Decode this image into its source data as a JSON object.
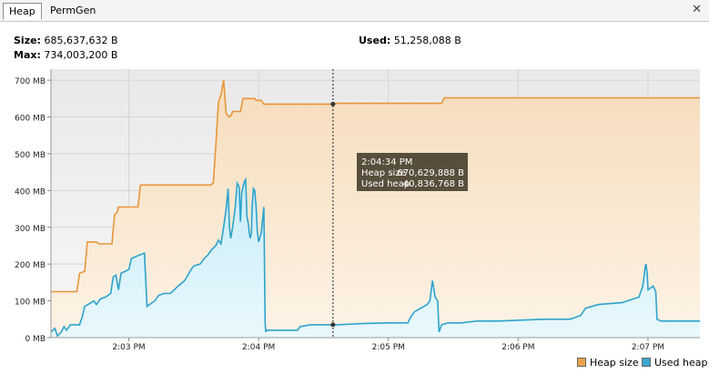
{
  "tabs": [
    {
      "label": "Heap",
      "active": true
    },
    {
      "label": "PermGen",
      "active": false
    }
  ],
  "close_icon": "close-icon",
  "stats": {
    "size_label": "Size:",
    "size_value": "685,637,632 B",
    "max_label": "Max:",
    "max_value": "734,003,200 B",
    "used_label": "Used:",
    "used_value": "51,258,088 B"
  },
  "tooltip": {
    "time": "2:04:34 PM",
    "heap_size_label": "Heap size",
    "heap_size_value": "670,629,888 B",
    "used_heap_label": "Used heap",
    "used_heap_value": "40,836,768 B"
  },
  "legend": [
    {
      "label": "Heap size",
      "color": "#e8a44c"
    },
    {
      "label": "Used heap",
      "color": "#3aa7cf"
    }
  ],
  "colors": {
    "heap_line": "#e8963a",
    "heap_fill_top": "#f6dcbc",
    "heap_fill_bottom": "#fdf3e6",
    "used_line": "#2ea3cc",
    "used_fill_top": "#c8ecf8",
    "used_fill_bottom": "#e9f8fd",
    "grid": "#d5d5d5",
    "tooltip_bg": "#4a4130"
  },
  "chart_data": {
    "type": "area",
    "xlim": [
      2.4,
      7.4
    ],
    "x_ticks": [
      {
        "label": "2:03 PM",
        "value": 3
      },
      {
        "label": "2:04 PM",
        "value": 4
      },
      {
        "label": "2:05 PM",
        "value": 5
      },
      {
        "label": "2:06 PM",
        "value": 6
      },
      {
        "label": "2:07 PM",
        "value": 7
      }
    ],
    "ylim": [
      0,
      730
    ],
    "y_ticks": [
      {
        "label": "0 MB",
        "value": 0
      },
      {
        "label": "100 MB",
        "value": 100
      },
      {
        "label": "200 MB",
        "value": 200
      },
      {
        "label": "300 MB",
        "value": 300
      },
      {
        "label": "400 MB",
        "value": 400
      },
      {
        "label": "500 MB",
        "value": 500
      },
      {
        "label": "600 MB",
        "value": 600
      },
      {
        "label": "700 MB",
        "value": 700
      }
    ],
    "cursor_x": 4.573,
    "series": [
      {
        "name": "Heap size",
        "points": [
          [
            2.4,
            125
          ],
          [
            2.6,
            125
          ],
          [
            2.62,
            175
          ],
          [
            2.66,
            180
          ],
          [
            2.68,
            260
          ],
          [
            2.75,
            260
          ],
          [
            2.77,
            255
          ],
          [
            2.87,
            255
          ],
          [
            2.89,
            335
          ],
          [
            2.91,
            340
          ],
          [
            2.92,
            355
          ],
          [
            3.07,
            355
          ],
          [
            3.09,
            415
          ],
          [
            3.63,
            415
          ],
          [
            3.65,
            420
          ],
          [
            3.67,
            520
          ],
          [
            3.69,
            640
          ],
          [
            3.71,
            660
          ],
          [
            3.73,
            700
          ],
          [
            3.75,
            610
          ],
          [
            3.77,
            600
          ],
          [
            3.79,
            605
          ],
          [
            3.8,
            615
          ],
          [
            3.86,
            615
          ],
          [
            3.88,
            650
          ],
          [
            3.97,
            650
          ],
          [
            3.98,
            645
          ],
          [
            4.02,
            645
          ],
          [
            4.04,
            635
          ],
          [
            4.58,
            635
          ],
          [
            4.59,
            637
          ],
          [
            5.41,
            637
          ],
          [
            5.43,
            652
          ],
          [
            7.4,
            652
          ]
        ]
      },
      {
        "name": "Used heap",
        "points": [
          [
            2.4,
            15
          ],
          [
            2.43,
            25
          ],
          [
            2.45,
            5
          ],
          [
            2.48,
            15
          ],
          [
            2.5,
            30
          ],
          [
            2.52,
            20
          ],
          [
            2.55,
            35
          ],
          [
            2.62,
            35
          ],
          [
            2.64,
            55
          ],
          [
            2.66,
            85
          ],
          [
            2.71,
            95
          ],
          [
            2.73,
            100
          ],
          [
            2.75,
            90
          ],
          [
            2.78,
            105
          ],
          [
            2.82,
            110
          ],
          [
            2.86,
            120
          ],
          [
            2.88,
            165
          ],
          [
            2.9,
            170
          ],
          [
            2.92,
            130
          ],
          [
            2.94,
            175
          ],
          [
            3.0,
            185
          ],
          [
            3.02,
            215
          ],
          [
            3.05,
            220
          ],
          [
            3.12,
            230
          ],
          [
            3.14,
            85
          ],
          [
            3.18,
            95
          ],
          [
            3.2,
            100
          ],
          [
            3.23,
            115
          ],
          [
            3.27,
            120
          ],
          [
            3.32,
            120
          ],
          [
            3.38,
            140
          ],
          [
            3.43,
            155
          ],
          [
            3.48,
            185
          ],
          [
            3.5,
            195
          ],
          [
            3.55,
            200
          ],
          [
            3.58,
            215
          ],
          [
            3.61,
            225
          ],
          [
            3.64,
            240
          ],
          [
            3.67,
            250
          ],
          [
            3.69,
            265
          ],
          [
            3.71,
            255
          ],
          [
            3.73,
            300
          ],
          [
            3.75,
            350
          ],
          [
            3.765,
            405
          ],
          [
            3.775,
            300
          ],
          [
            3.785,
            270
          ],
          [
            3.8,
            300
          ],
          [
            3.82,
            355
          ],
          [
            3.835,
            420
          ],
          [
            3.85,
            410
          ],
          [
            3.86,
            315
          ],
          [
            3.87,
            395
          ],
          [
            3.89,
            425
          ],
          [
            3.9,
            430
          ],
          [
            3.91,
            330
          ],
          [
            3.92,
            310
          ],
          [
            3.93,
            280
          ],
          [
            3.935,
            270
          ],
          [
            3.945,
            285
          ],
          [
            3.95,
            355
          ],
          [
            3.96,
            405
          ],
          [
            3.97,
            400
          ],
          [
            3.98,
            360
          ],
          [
            3.99,
            290
          ],
          [
            4.0,
            260
          ],
          [
            4.02,
            285
          ],
          [
            4.04,
            355
          ],
          [
            4.05,
            40
          ],
          [
            4.055,
            15
          ],
          [
            4.06,
            20
          ],
          [
            4.3,
            20
          ],
          [
            4.32,
            30
          ],
          [
            4.4,
            35
          ],
          [
            4.6,
            35
          ],
          [
            4.8,
            38
          ],
          [
            5.0,
            40
          ],
          [
            5.15,
            40
          ],
          [
            5.17,
            55
          ],
          [
            5.2,
            70
          ],
          [
            5.3,
            90
          ],
          [
            5.32,
            100
          ],
          [
            5.34,
            155
          ],
          [
            5.36,
            110
          ],
          [
            5.38,
            100
          ],
          [
            5.39,
            15
          ],
          [
            5.41,
            35
          ],
          [
            5.46,
            40
          ],
          [
            5.56,
            40
          ],
          [
            5.68,
            45
          ],
          [
            5.85,
            45
          ],
          [
            6.2,
            50
          ],
          [
            6.4,
            50
          ],
          [
            6.48,
            60
          ],
          [
            6.52,
            80
          ],
          [
            6.62,
            90
          ],
          [
            6.8,
            95
          ],
          [
            6.93,
            110
          ],
          [
            6.96,
            140
          ],
          [
            6.98,
            195
          ],
          [
            6.985,
            200
          ],
          [
            6.995,
            170
          ],
          [
            7.0,
            130
          ],
          [
            7.04,
            140
          ],
          [
            7.06,
            125
          ],
          [
            7.07,
            50
          ],
          [
            7.1,
            45
          ],
          [
            7.4,
            45
          ]
        ]
      }
    ]
  }
}
